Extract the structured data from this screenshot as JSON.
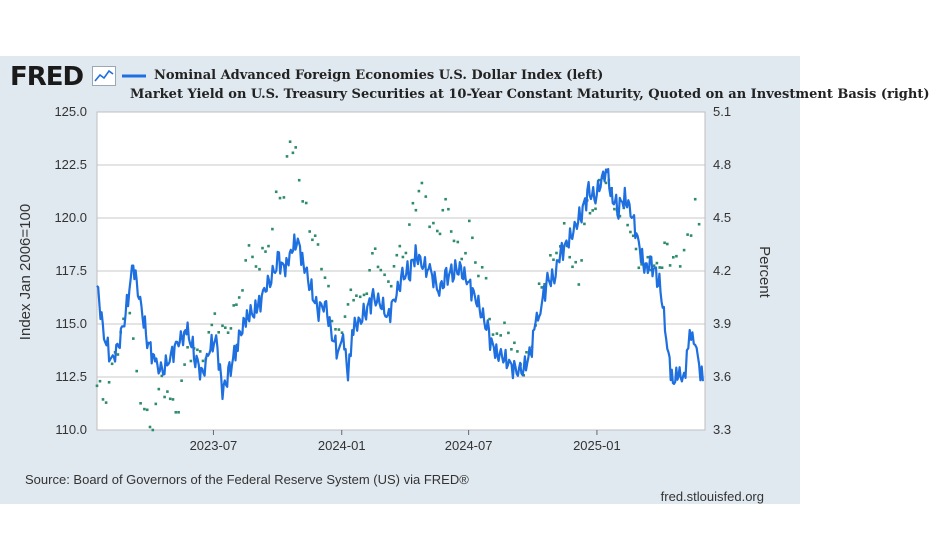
{
  "header": {
    "logo_text": "FRED"
  },
  "footer": {
    "source": "Source: Board of Governors of the Federal Reserve System (US) via FRED®",
    "site": "fred.stlouisfed.org"
  },
  "colors": {
    "dollar_index": "#1e6fe0",
    "treasury_yield": "#2e8b6e",
    "grid": "#c9c9c9",
    "panel": "#e1e9f0"
  },
  "chart_data": {
    "type": "line",
    "title": "",
    "x_ticks": [
      "2023-07",
      "2024-01",
      "2024-07",
      "2025-01"
    ],
    "y_left": {
      "label": "Index Jan 2006=100",
      "range": [
        110.0,
        125.0
      ],
      "ticks": [
        "110.0",
        "112.5",
        "115.0",
        "117.5",
        "120.0",
        "122.5",
        "125.0"
      ]
    },
    "y_right": {
      "label": "Percent",
      "range": [
        3.3,
        5.1
      ],
      "ticks": [
        "3.3",
        "3.6",
        "3.9",
        "4.2",
        "4.5",
        "4.8",
        "5.1"
      ]
    },
    "series": [
      {
        "name": "Nominal Advanced Foreign Economies U.S. Dollar Index (left)",
        "axis": "left",
        "style": "solid",
        "points": [
          [
            "2023-01-15",
            116.8
          ],
          [
            "2023-01-25",
            114.5
          ],
          [
            "2023-02-05",
            113.2
          ],
          [
            "2023-02-15",
            114.0
          ],
          [
            "2023-02-25",
            115.5
          ],
          [
            "2023-03-08",
            117.8
          ],
          [
            "2023-03-18",
            116.0
          ],
          [
            "2023-03-28",
            114.3
          ],
          [
            "2023-04-10",
            113.0
          ],
          [
            "2023-04-20",
            112.8
          ],
          [
            "2023-05-01",
            113.5
          ],
          [
            "2023-05-12",
            114.2
          ],
          [
            "2023-05-25",
            114.6
          ],
          [
            "2023-06-05",
            113.5
          ],
          [
            "2023-06-15",
            112.5
          ],
          [
            "2023-06-25",
            113.8
          ],
          [
            "2023-07-05",
            114.3
          ],
          [
            "2023-07-14",
            111.8
          ],
          [
            "2023-07-24",
            112.7
          ],
          [
            "2023-08-05",
            114.2
          ],
          [
            "2023-08-18",
            115.4
          ],
          [
            "2023-09-01",
            115.6
          ],
          [
            "2023-09-12",
            116.6
          ],
          [
            "2023-09-22",
            117.2
          ],
          [
            "2023-10-03",
            118.0
          ],
          [
            "2023-10-12",
            117.5
          ],
          [
            "2023-10-20",
            118.5
          ],
          [
            "2023-10-30",
            118.9
          ],
          [
            "2023-11-07",
            117.9
          ],
          [
            "2023-11-17",
            116.8
          ],
          [
            "2023-11-27",
            115.6
          ],
          [
            "2023-12-08",
            116.0
          ],
          [
            "2023-12-18",
            114.5
          ],
          [
            "2023-12-28",
            113.5
          ],
          [
            "2024-01-03",
            114.7
          ],
          [
            "2024-01-10",
            112.3
          ],
          [
            "2024-01-16",
            114.8
          ],
          [
            "2024-01-25",
            115.0
          ],
          [
            "2024-02-05",
            115.7
          ],
          [
            "2024-02-15",
            116.2
          ],
          [
            "2024-02-26",
            116.0
          ],
          [
            "2024-03-07",
            115.3
          ],
          [
            "2024-03-18",
            116.3
          ],
          [
            "2024-03-28",
            117.2
          ],
          [
            "2024-04-08",
            117.6
          ],
          [
            "2024-04-16",
            118.3
          ],
          [
            "2024-04-26",
            117.8
          ],
          [
            "2024-05-08",
            117.4
          ],
          [
            "2024-05-20",
            116.6
          ],
          [
            "2024-05-30",
            117.2
          ],
          [
            "2024-06-10",
            117.6
          ],
          [
            "2024-06-20",
            117.5
          ],
          [
            "2024-06-30",
            117.0
          ],
          [
            "2024-07-10",
            116.3
          ],
          [
            "2024-07-20",
            115.5
          ],
          [
            "2024-07-30",
            114.5
          ],
          [
            "2024-08-08",
            113.6
          ],
          [
            "2024-08-18",
            113.5
          ],
          [
            "2024-08-28",
            113.1
          ],
          [
            "2024-09-08",
            112.8
          ],
          [
            "2024-09-18",
            112.9
          ],
          [
            "2024-09-28",
            113.6
          ],
          [
            "2024-10-05",
            115.0
          ],
          [
            "2024-10-12",
            115.8
          ],
          [
            "2024-10-22",
            117.0
          ],
          [
            "2024-11-01",
            117.2
          ],
          [
            "2024-11-10",
            118.4
          ],
          [
            "2024-11-20",
            118.8
          ],
          [
            "2024-11-30",
            119.5
          ],
          [
            "2024-12-10",
            120.3
          ],
          [
            "2024-12-20",
            121.2
          ],
          [
            "2024-12-30",
            121.0
          ],
          [
            "2025-01-08",
            121.8
          ],
          [
            "2025-01-14",
            122.5
          ],
          [
            "2025-01-22",
            121.0
          ],
          [
            "2025-02-01",
            120.5
          ],
          [
            "2025-02-10",
            121.0
          ],
          [
            "2025-02-20",
            120.2
          ],
          [
            "2025-03-02",
            118.8
          ],
          [
            "2025-03-10",
            117.6
          ],
          [
            "2025-03-20",
            117.8
          ],
          [
            "2025-03-30",
            117.2
          ],
          [
            "2025-04-07",
            115.6
          ],
          [
            "2025-04-12",
            113.8
          ],
          [
            "2025-04-20",
            112.3
          ],
          [
            "2025-04-28",
            112.6
          ],
          [
            "2025-05-06",
            112.5
          ],
          [
            "2025-05-12",
            114.0
          ],
          [
            "2025-05-18",
            114.7
          ],
          [
            "2025-05-24",
            113.6
          ],
          [
            "2025-06-02",
            112.3
          ]
        ]
      },
      {
        "name": "Market Yield on U.S. Treasury Securities at 10-Year Constant Maturity, Quoted on an Investment Basis (right)",
        "axis": "right",
        "style": "dotted",
        "points": [
          [
            "2023-01-15",
            3.55
          ],
          [
            "2023-01-28",
            3.5
          ],
          [
            "2023-02-10",
            3.7
          ],
          [
            "2023-02-22",
            3.92
          ],
          [
            "2023-03-03",
            4.01
          ],
          [
            "2023-03-13",
            3.6
          ],
          [
            "2023-03-24",
            3.4
          ],
          [
            "2023-04-05",
            3.35
          ],
          [
            "2023-04-18",
            3.58
          ],
          [
            "2023-04-30",
            3.45
          ],
          [
            "2023-05-12",
            3.45
          ],
          [
            "2023-05-25",
            3.75
          ],
          [
            "2023-06-08",
            3.72
          ],
          [
            "2023-06-20",
            3.75
          ],
          [
            "2023-07-03",
            3.95
          ],
          [
            "2023-07-14",
            3.85
          ],
          [
            "2023-07-26",
            3.92
          ],
          [
            "2023-08-07",
            4.05
          ],
          [
            "2023-08-21",
            4.3
          ],
          [
            "2023-09-05",
            4.25
          ],
          [
            "2023-09-18",
            4.35
          ],
          [
            "2023-09-29",
            4.6
          ],
          [
            "2023-10-10",
            4.65
          ],
          [
            "2023-10-19",
            4.95
          ],
          [
            "2023-10-27",
            4.85
          ],
          [
            "2023-11-06",
            4.62
          ],
          [
            "2023-11-16",
            4.45
          ],
          [
            "2023-11-28",
            4.3
          ],
          [
            "2023-12-08",
            4.18
          ],
          [
            "2023-12-18",
            3.95
          ],
          [
            "2023-12-28",
            3.82
          ],
          [
            "2024-01-10",
            4.02
          ],
          [
            "2024-01-22",
            4.1
          ],
          [
            "2024-02-02",
            4.02
          ],
          [
            "2024-02-14",
            4.3
          ],
          [
            "2024-02-26",
            4.25
          ],
          [
            "2024-03-08",
            4.1
          ],
          [
            "2024-03-20",
            4.28
          ],
          [
            "2024-04-02",
            4.35
          ],
          [
            "2024-04-12",
            4.55
          ],
          [
            "2024-04-25",
            4.68
          ],
          [
            "2024-05-06",
            4.5
          ],
          [
            "2024-05-17",
            4.4
          ],
          [
            "2024-05-29",
            4.58
          ],
          [
            "2024-06-10",
            4.42
          ],
          [
            "2024-06-21",
            4.25
          ],
          [
            "2024-07-02",
            4.45
          ],
          [
            "2024-07-15",
            4.22
          ],
          [
            "2024-07-26",
            4.15
          ],
          [
            "2024-08-05",
            3.8
          ],
          [
            "2024-08-16",
            3.88
          ],
          [
            "2024-08-27",
            3.85
          ],
          [
            "2024-09-09",
            3.7
          ],
          [
            "2024-09-18",
            3.65
          ],
          [
            "2024-09-30",
            3.78
          ],
          [
            "2024-10-10",
            4.08
          ],
          [
            "2024-10-22",
            4.2
          ],
          [
            "2024-11-04",
            4.32
          ],
          [
            "2024-11-15",
            4.42
          ],
          [
            "2024-11-27",
            4.25
          ],
          [
            "2024-12-06",
            4.15
          ],
          [
            "2024-12-18",
            4.55
          ],
          [
            "2024-12-30",
            4.57
          ],
          [
            "2025-01-10",
            4.76
          ],
          [
            "2025-01-22",
            4.62
          ],
          [
            "2025-02-03",
            4.52
          ],
          [
            "2025-02-14",
            4.5
          ],
          [
            "2025-02-26",
            4.28
          ],
          [
            "2025-03-10",
            4.22
          ],
          [
            "2025-03-20",
            4.25
          ],
          [
            "2025-04-01",
            4.18
          ],
          [
            "2025-04-08",
            4.35
          ],
          [
            "2025-04-16",
            4.28
          ],
          [
            "2025-04-25",
            4.25
          ],
          [
            "2025-05-06",
            4.3
          ],
          [
            "2025-05-16",
            4.45
          ],
          [
            "2025-05-22",
            4.58
          ],
          [
            "2025-06-02",
            4.45
          ]
        ]
      }
    ],
    "x_range": [
      "2023-01-15",
      "2025-06-05"
    ],
    "grid": "horizontal",
    "legend": "top-left"
  }
}
